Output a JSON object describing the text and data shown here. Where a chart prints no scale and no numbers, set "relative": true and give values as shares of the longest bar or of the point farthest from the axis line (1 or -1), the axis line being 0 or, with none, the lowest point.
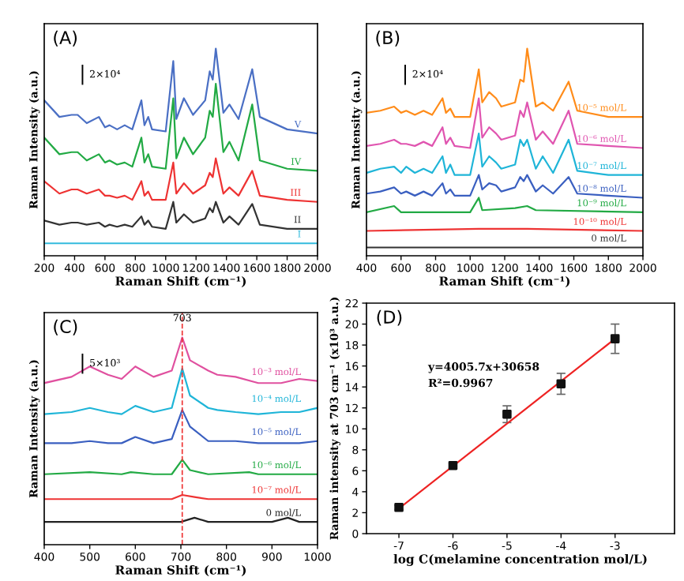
{
  "chart_data": [
    {
      "type": "line",
      "title": "(A)",
      "xlabel": "Raman Shift (cm⁻¹)",
      "ylabel": "Raman Intensity (a.u.)",
      "relative": true,
      "xlim": [
        200,
        2000
      ],
      "xticks": [
        200,
        400,
        600,
        800,
        1000,
        1200,
        1400,
        1600,
        1800,
        2000
      ],
      "annotations": [
        "2×10⁴"
      ],
      "x": [
        200,
        300,
        380,
        420,
        480,
        560,
        600,
        630,
        680,
        730,
        780,
        840,
        860,
        885,
        910,
        1000,
        1050,
        1070,
        1120,
        1180,
        1260,
        1290,
        1310,
        1330,
        1380,
        1420,
        1480,
        1570,
        1620,
        1800,
        2000
      ],
      "series": [
        {
          "name": "V",
          "color": "#4a6fc4",
          "values": [
            0.75,
            0.67,
            0.68,
            0.68,
            0.64,
            0.67,
            0.62,
            0.63,
            0.61,
            0.63,
            0.61,
            0.75,
            0.63,
            0.67,
            0.61,
            0.6,
            0.94,
            0.66,
            0.76,
            0.68,
            0.75,
            0.89,
            0.85,
            1.0,
            0.69,
            0.73,
            0.66,
            0.9,
            0.67,
            0.61,
            0.59
          ]
        },
        {
          "name": "IV",
          "color": "#22aa44",
          "values": [
            0.57,
            0.49,
            0.5,
            0.5,
            0.46,
            0.49,
            0.45,
            0.46,
            0.44,
            0.45,
            0.43,
            0.57,
            0.45,
            0.49,
            0.43,
            0.42,
            0.76,
            0.47,
            0.57,
            0.49,
            0.57,
            0.7,
            0.67,
            0.83,
            0.5,
            0.55,
            0.46,
            0.73,
            0.46,
            0.42,
            0.41
          ]
        },
        {
          "name": "III",
          "color": "#ee3333",
          "values": [
            0.36,
            0.3,
            0.32,
            0.32,
            0.3,
            0.32,
            0.29,
            0.29,
            0.28,
            0.29,
            0.27,
            0.36,
            0.29,
            0.31,
            0.27,
            0.27,
            0.45,
            0.3,
            0.35,
            0.3,
            0.34,
            0.4,
            0.38,
            0.47,
            0.3,
            0.33,
            0.29,
            0.41,
            0.29,
            0.27,
            0.26
          ]
        },
        {
          "name": "II",
          "color": "#333333",
          "values": [
            0.17,
            0.15,
            0.16,
            0.16,
            0.15,
            0.16,
            0.14,
            0.15,
            0.14,
            0.15,
            0.14,
            0.19,
            0.15,
            0.17,
            0.14,
            0.13,
            0.26,
            0.16,
            0.2,
            0.16,
            0.18,
            0.23,
            0.21,
            0.26,
            0.16,
            0.19,
            0.15,
            0.25,
            0.15,
            0.13,
            0.13
          ]
        },
        {
          "name": "I",
          "color": "#33bbdd",
          "x": [
            200,
            2000
          ],
          "values": [
            0.06,
            0.06
          ]
        }
      ]
    },
    {
      "type": "line",
      "title": "(B)",
      "xlabel": "Raman Shift (cm⁻¹)",
      "ylabel": "Raman Intensity (a.u.)",
      "relative": true,
      "xlim": [
        400,
        2000
      ],
      "xticks": [
        400,
        600,
        800,
        1000,
        1200,
        1400,
        1600,
        1800,
        2000
      ],
      "annotations": [
        "2×10⁴"
      ],
      "x": [
        400,
        480,
        560,
        600,
        630,
        680,
        730,
        780,
        840,
        860,
        885,
        910,
        1000,
        1050,
        1070,
        1110,
        1150,
        1180,
        1260,
        1290,
        1310,
        1330,
        1380,
        1420,
        1480,
        1570,
        1620,
        1800,
        2000
      ],
      "series": [
        {
          "name": "10⁻⁵ mol/L",
          "color": "#ff8c1a",
          "values": [
            0.69,
            0.7,
            0.72,
            0.69,
            0.7,
            0.68,
            0.7,
            0.68,
            0.76,
            0.69,
            0.71,
            0.67,
            0.67,
            0.9,
            0.74,
            0.79,
            0.76,
            0.72,
            0.74,
            0.85,
            0.84,
            1.0,
            0.72,
            0.74,
            0.7,
            0.84,
            0.7,
            0.67,
            0.67
          ]
        },
        {
          "name": "10⁻⁶ mol/L",
          "color": "#e055b0",
          "values": [
            0.53,
            0.54,
            0.56,
            0.54,
            0.54,
            0.53,
            0.55,
            0.53,
            0.62,
            0.54,
            0.57,
            0.53,
            0.52,
            0.76,
            0.57,
            0.62,
            0.59,
            0.56,
            0.58,
            0.7,
            0.67,
            0.74,
            0.56,
            0.6,
            0.54,
            0.7,
            0.54,
            0.53,
            0.52
          ]
        },
        {
          "name": "10⁻⁷ mol/L",
          "color": "#1fb5d8",
          "values": [
            0.4,
            0.42,
            0.43,
            0.4,
            0.43,
            0.4,
            0.42,
            0.4,
            0.48,
            0.4,
            0.44,
            0.39,
            0.39,
            0.59,
            0.43,
            0.48,
            0.45,
            0.42,
            0.44,
            0.56,
            0.53,
            0.56,
            0.42,
            0.48,
            0.4,
            0.56,
            0.41,
            0.39,
            0.39
          ]
        },
        {
          "name": "10⁻⁸ mol/L",
          "color": "#3a5fc0",
          "values": [
            0.3,
            0.31,
            0.33,
            0.3,
            0.31,
            0.29,
            0.31,
            0.29,
            0.35,
            0.3,
            0.32,
            0.29,
            0.29,
            0.39,
            0.32,
            0.35,
            0.34,
            0.31,
            0.33,
            0.38,
            0.36,
            0.39,
            0.31,
            0.34,
            0.3,
            0.38,
            0.3,
            0.29,
            0.28
          ]
        },
        {
          "name": "10⁻⁹ mol/L",
          "color": "#22aa44",
          "x": [
            400,
            560,
            600,
            1000,
            1050,
            1070,
            1260,
            1330,
            1380,
            2000
          ],
          "values": [
            0.21,
            0.24,
            0.21,
            0.21,
            0.28,
            0.22,
            0.23,
            0.24,
            0.22,
            0.21
          ]
        },
        {
          "name": "10⁻¹⁰ mol/L",
          "color": "#ee3333",
          "x": [
            400,
            1050,
            1330,
            2000
          ],
          "values": [
            0.12,
            0.13,
            0.13,
            0.12
          ]
        },
        {
          "name": "0 mol/L",
          "color": "#333333",
          "x": [
            400,
            2000
          ],
          "values": [
            0.04,
            0.04
          ]
        }
      ]
    },
    {
      "type": "line",
      "title": "(C)",
      "xlabel": "Raman Shift (cm⁻¹)",
      "ylabel": "Raman Intensity (a.u.)",
      "relative": true,
      "xlim": [
        400,
        1000
      ],
      "xticks": [
        400,
        500,
        600,
        700,
        800,
        900,
        1000
      ],
      "annotations": [
        "5×10³"
      ],
      "ref_lines": [
        {
          "axis": "x",
          "value": 703,
          "label": "703",
          "color": "#ee3333",
          "line_style": "dashed"
        }
      ],
      "x": [
        400,
        460,
        500,
        540,
        570,
        600,
        640,
        680,
        703,
        720,
        760,
        780,
        820,
        870,
        920,
        960,
        1000
      ],
      "series": [
        {
          "name": "10⁻³ mol/L",
          "color": "#e0509f",
          "values": [
            0.78,
            0.81,
            0.86,
            0.82,
            0.8,
            0.86,
            0.81,
            0.84,
            1.0,
            0.89,
            0.84,
            0.82,
            0.81,
            0.78,
            0.78,
            0.8,
            0.79
          ]
        },
        {
          "name": "10⁻⁴ mol/L",
          "color": "#1fb5d8",
          "values": [
            0.63,
            0.64,
            0.66,
            0.64,
            0.63,
            0.67,
            0.64,
            0.66,
            0.85,
            0.72,
            0.66,
            0.65,
            0.64,
            0.63,
            0.64,
            0.64,
            0.66
          ]
        },
        {
          "name": "10⁻⁵ mol/L",
          "color": "#3a5fc0",
          "values": [
            0.49,
            0.49,
            0.5,
            0.49,
            0.49,
            0.52,
            0.49,
            0.51,
            0.65,
            0.57,
            0.5,
            0.5,
            0.5,
            0.49,
            0.49,
            0.49,
            0.5
          ]
        },
        {
          "name": "10⁻⁶ mol/L",
          "color": "#22aa44",
          "x": [
            400,
            500,
            570,
            590,
            640,
            680,
            703,
            720,
            760,
            850,
            870,
            1000
          ],
          "values": [
            0.34,
            0.35,
            0.34,
            0.35,
            0.34,
            0.34,
            0.41,
            0.36,
            0.34,
            0.35,
            0.34,
            0.34
          ]
        },
        {
          "name": "10⁻⁷ mol/L",
          "color": "#ee3333",
          "x": [
            400,
            680,
            703,
            730,
            760,
            1000
          ],
          "values": [
            0.22,
            0.22,
            0.24,
            0.23,
            0.22,
            0.22
          ]
        },
        {
          "name": "0 mol/L",
          "color": "#222222",
          "x": [
            400,
            700,
            730,
            760,
            900,
            935,
            960,
            1000
          ],
          "values": [
            0.11,
            0.11,
            0.13,
            0.11,
            0.11,
            0.13,
            0.11,
            0.11
          ]
        }
      ]
    },
    {
      "type": "scatter",
      "title": "(D)",
      "xlabel": "log C(melamine concentration mol/L)",
      "ylabel": "Raman intensity at 703 cm⁻¹ (x10³ a.u.)",
      "xlim": [
        -7.6,
        -1.9
      ],
      "xticks": [
        -7,
        -6,
        -5,
        -4,
        -3
      ],
      "ylim": [
        0,
        22
      ],
      "yticks": [
        0,
        2,
        4,
        6,
        8,
        10,
        12,
        14,
        16,
        18,
        20,
        22
      ],
      "annotations": [
        "y=4005.7x+30658",
        "R²=0.9967"
      ],
      "x": [
        -7,
        -6,
        -5,
        -4,
        -3
      ],
      "series": [
        {
          "type": "scatter",
          "color": "#111111",
          "marker": "square",
          "values": [
            2.5,
            6.5,
            11.4,
            14.3,
            18.6
          ],
          "errors": [
            0.2,
            0.2,
            0.8,
            1.0,
            1.4
          ]
        },
        {
          "type": "line",
          "color": "#ee2222",
          "marker": "none",
          "x": [
            -7,
            -3
          ],
          "values": [
            2.4,
            18.6
          ]
        }
      ]
    }
  ]
}
